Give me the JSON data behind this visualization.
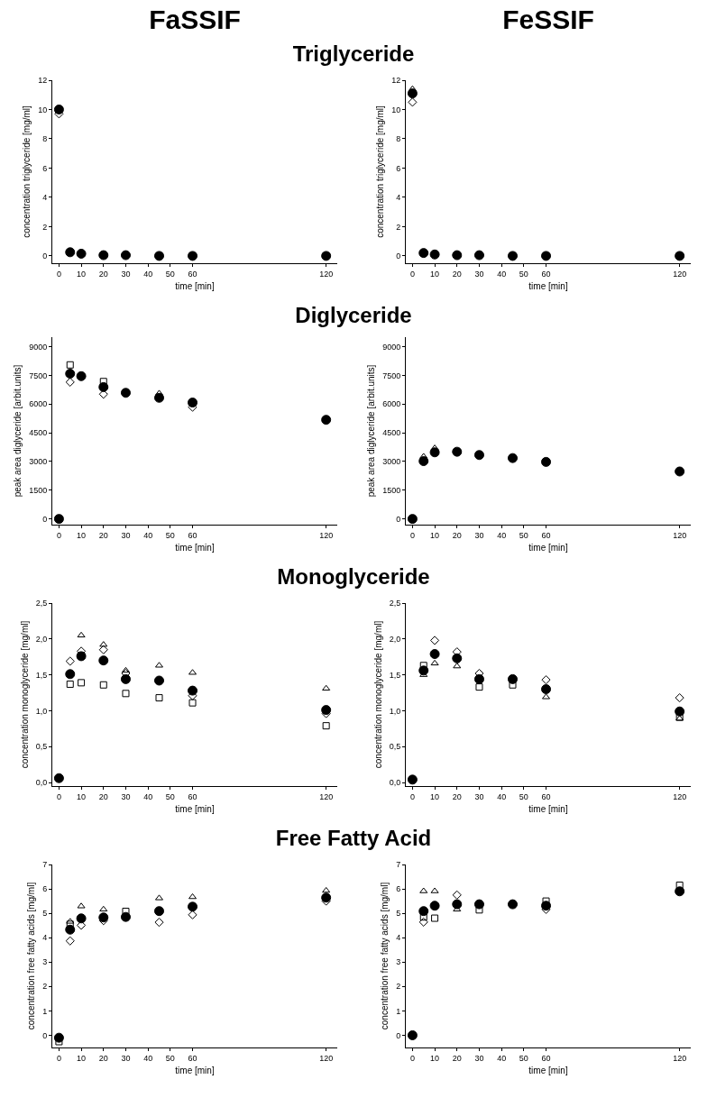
{
  "chart_data": [
    {
      "type": "scatter",
      "annotations": [
        "FaSSIF"
      ],
      "title": "Triglyceride",
      "xlabel": "time [min]",
      "ylabel": "concentration triglyceride [mg/ml]",
      "x": [
        0,
        5,
        10,
        20,
        30,
        45,
        60,
        120
      ],
      "xlim": [
        -3,
        125
      ],
      "xticks": [
        0,
        10,
        20,
        30,
        40,
        50,
        60,
        120
      ],
      "ylim": [
        -0.5,
        12
      ],
      "yticks": [
        0,
        2,
        4,
        6,
        8,
        10,
        12
      ],
      "series": [
        {
          "color": "#000000",
          "marker": "diamond",
          "values": [
            9.7,
            null,
            null,
            null,
            null,
            null,
            null,
            null
          ]
        },
        {
          "color": "#000000",
          "marker": "circle",
          "values": [
            10.0,
            0.25,
            0.15,
            0.05,
            0.05,
            0.0,
            0.0,
            0.0
          ]
        }
      ]
    },
    {
      "type": "scatter",
      "annotations": [
        "FeSSIF"
      ],
      "xlabel": "time [min]",
      "ylabel": "concentration triglyceride [mg/ml]",
      "x": [
        0,
        5,
        10,
        20,
        30,
        45,
        60,
        120
      ],
      "xlim": [
        -3,
        125
      ],
      "xticks": [
        0,
        10,
        20,
        30,
        40,
        50,
        60,
        120
      ],
      "ylim": [
        -0.5,
        12
      ],
      "yticks": [
        0,
        2,
        4,
        6,
        8,
        10,
        12
      ],
      "series": [
        {
          "color": "#000000",
          "marker": "diamond",
          "values": [
            10.5,
            null,
            null,
            null,
            null,
            null,
            null,
            null
          ]
        },
        {
          "color": "#000000",
          "marker": "triangle",
          "values": [
            11.4,
            null,
            null,
            null,
            null,
            null,
            null,
            null
          ]
        },
        {
          "color": "#000000",
          "marker": "circle",
          "values": [
            11.1,
            0.2,
            0.1,
            0.05,
            0.05,
            0.0,
            0.0,
            0.0
          ]
        }
      ]
    },
    {
      "type": "scatter",
      "title": "Diglyceride",
      "xlabel": "time [min]",
      "ylabel": "peak area diglyceride [arbit.units]",
      "x": [
        0,
        5,
        10,
        20,
        30,
        45,
        60,
        120
      ],
      "xlim": [
        -3,
        125
      ],
      "xticks": [
        0,
        10,
        20,
        30,
        40,
        50,
        60,
        120
      ],
      "ylim": [
        -300,
        9500
      ],
      "yticks": [
        0,
        1500,
        3000,
        4500,
        6000,
        7500,
        9000
      ],
      "series": [
        {
          "color": "#000000",
          "marker": "square",
          "values": [
            null,
            8050,
            null,
            7180,
            null,
            null,
            null,
            null
          ]
        },
        {
          "color": "#000000",
          "marker": "diamond",
          "values": [
            null,
            7150,
            null,
            6520,
            null,
            null,
            5840,
            null
          ]
        },
        {
          "color": "#000000",
          "marker": "triangle",
          "values": [
            null,
            null,
            null,
            null,
            null,
            6560,
            null,
            null
          ]
        },
        {
          "color": "#000000",
          "marker": "circle",
          "values": [
            0,
            7590,
            7460,
            6890,
            6590,
            6330,
            6080,
            5180
          ]
        }
      ]
    },
    {
      "type": "scatter",
      "xlabel": "time [min]",
      "ylabel": "peak area diglyceride [arbit.units]",
      "x": [
        0,
        5,
        10,
        20,
        30,
        45,
        60,
        120
      ],
      "xlim": [
        -3,
        125
      ],
      "xticks": [
        0,
        10,
        20,
        30,
        40,
        50,
        60,
        120
      ],
      "ylim": [
        -300,
        9500
      ],
      "yticks": [
        0,
        1500,
        3000,
        4500,
        6000,
        7500,
        9000
      ],
      "series": [
        {
          "color": "#000000",
          "marker": "triangle",
          "values": [
            null,
            3260,
            3700,
            null,
            null,
            null,
            null,
            null
          ]
        },
        {
          "color": "#000000",
          "marker": "circle",
          "values": [
            0,
            3020,
            3480,
            3510,
            3340,
            3180,
            2980,
            2480
          ]
        }
      ]
    },
    {
      "type": "scatter",
      "title": "Monoglyceride",
      "xlabel": "time [min]",
      "ylabel": "concentration monoglyceride [mg/ml]",
      "x": [
        0,
        5,
        10,
        20,
        30,
        45,
        60,
        120
      ],
      "xlim": [
        -3,
        125
      ],
      "xticks": [
        0,
        10,
        20,
        30,
        40,
        50,
        60,
        120
      ],
      "ylim": [
        -0.05,
        2.5
      ],
      "yticks": [
        {
          "value": 0,
          "label": "0,0"
        },
        {
          "value": 0.5,
          "label": "0,5"
        },
        {
          "value": 1,
          "label": "1,0"
        },
        {
          "value": 1.5,
          "label": "1,5"
        },
        {
          "value": 2,
          "label": "2,0"
        },
        {
          "value": 2.5,
          "label": "2,5"
        }
      ],
      "series": [
        {
          "color": "#000000",
          "marker": "square",
          "values": [
            null,
            1.37,
            1.39,
            1.36,
            1.24,
            1.18,
            1.11,
            0.79
          ]
        },
        {
          "color": "#000000",
          "marker": "diamond",
          "values": [
            null,
            1.69,
            1.83,
            1.85,
            1.52,
            null,
            1.21,
            0.96
          ]
        },
        {
          "color": "#000000",
          "marker": "triangle",
          "values": [
            null,
            null,
            2.05,
            1.92,
            1.56,
            1.63,
            1.53,
            1.31
          ]
        },
        {
          "color": "#000000",
          "marker": "circle",
          "values": [
            0.06,
            1.51,
            1.76,
            1.7,
            1.44,
            1.42,
            1.28,
            1.01
          ]
        }
      ]
    },
    {
      "type": "scatter",
      "xlabel": "time [min]",
      "ylabel": "concentration monoglyceride [mg/ml]",
      "x": [
        0,
        5,
        10,
        20,
        30,
        45,
        60,
        120
      ],
      "xlim": [
        -3,
        125
      ],
      "xticks": [
        0,
        10,
        20,
        30,
        40,
        50,
        60,
        120
      ],
      "ylim": [
        -0.05,
        2.5
      ],
      "yticks": [
        {
          "value": 0,
          "label": "0,0"
        },
        {
          "value": 0.5,
          "label": "0,5"
        },
        {
          "value": 1,
          "label": "1,0"
        },
        {
          "value": 1.5,
          "label": "1,5"
        },
        {
          "value": 2,
          "label": "2,0"
        },
        {
          "value": 2.5,
          "label": "2,5"
        }
      ],
      "series": [
        {
          "color": "#000000",
          "marker": "square",
          "values": [
            null,
            1.63,
            null,
            null,
            1.33,
            1.36,
            null,
            0.91
          ]
        },
        {
          "color": "#000000",
          "marker": "diamond",
          "values": [
            null,
            null,
            1.98,
            1.82,
            1.52,
            null,
            1.43,
            1.18
          ]
        },
        {
          "color": "#000000",
          "marker": "triangle",
          "values": [
            null,
            1.5,
            1.66,
            1.62,
            null,
            null,
            1.19,
            0.89
          ]
        },
        {
          "color": "#000000",
          "marker": "circle",
          "values": [
            0.04,
            1.56,
            1.79,
            1.73,
            1.44,
            1.44,
            1.3,
            0.99
          ]
        }
      ]
    },
    {
      "type": "scatter",
      "title": "Free Fatty Acid",
      "xlabel": "time [min]",
      "ylabel": "concentration free fatty acids [mg/ml]",
      "x": [
        0,
        5,
        10,
        20,
        30,
        45,
        60,
        120
      ],
      "xlim": [
        -3,
        125
      ],
      "xticks": [
        0,
        10,
        20,
        30,
        40,
        50,
        60,
        120
      ],
      "ylim": [
        -0.5,
        7
      ],
      "yticks": [
        0,
        1,
        2,
        3,
        4,
        5,
        6,
        7
      ],
      "series": [
        {
          "color": "#000000",
          "marker": "square",
          "values": [
            -0.26,
            4.55,
            null,
            null,
            5.08,
            null,
            null,
            null
          ]
        },
        {
          "color": "#000000",
          "marker": "diamond",
          "values": [
            null,
            3.87,
            4.51,
            4.7,
            null,
            4.63,
            4.94,
            5.5
          ]
        },
        {
          "color": "#000000",
          "marker": "triangle",
          "values": [
            null,
            4.66,
            5.29,
            5.16,
            null,
            5.62,
            5.67,
            5.93
          ]
        },
        {
          "color": "#000000",
          "marker": "circle",
          "values": [
            -0.1,
            4.33,
            4.79,
            4.83,
            4.85,
            5.09,
            5.27,
            5.64
          ]
        }
      ]
    },
    {
      "type": "scatter",
      "xlabel": "time [min]",
      "ylabel": "concentration free fatty acids [mg/ml]",
      "x": [
        0,
        5,
        10,
        20,
        30,
        45,
        60,
        120
      ],
      "xlim": [
        -3,
        125
      ],
      "xticks": [
        0,
        10,
        20,
        30,
        40,
        50,
        60,
        120
      ],
      "ylim": [
        -0.5,
        7
      ],
      "yticks": [
        0,
        1,
        2,
        3,
        4,
        5,
        6,
        7
      ],
      "series": [
        {
          "color": "#000000",
          "marker": "square",
          "values": [
            null,
            4.85,
            4.8,
            null,
            5.14,
            null,
            5.5,
            6.15
          ]
        },
        {
          "color": "#000000",
          "marker": "diamond",
          "values": [
            null,
            4.64,
            null,
            5.75,
            null,
            null,
            5.16,
            null
          ]
        },
        {
          "color": "#000000",
          "marker": "triangle",
          "values": [
            null,
            5.91,
            5.91,
            5.16,
            null,
            null,
            null,
            null
          ]
        },
        {
          "color": "#000000",
          "marker": "circle",
          "values": [
            0,
            5.09,
            5.31,
            5.37,
            5.37,
            5.37,
            5.31,
            5.9
          ]
        }
      ]
    }
  ]
}
